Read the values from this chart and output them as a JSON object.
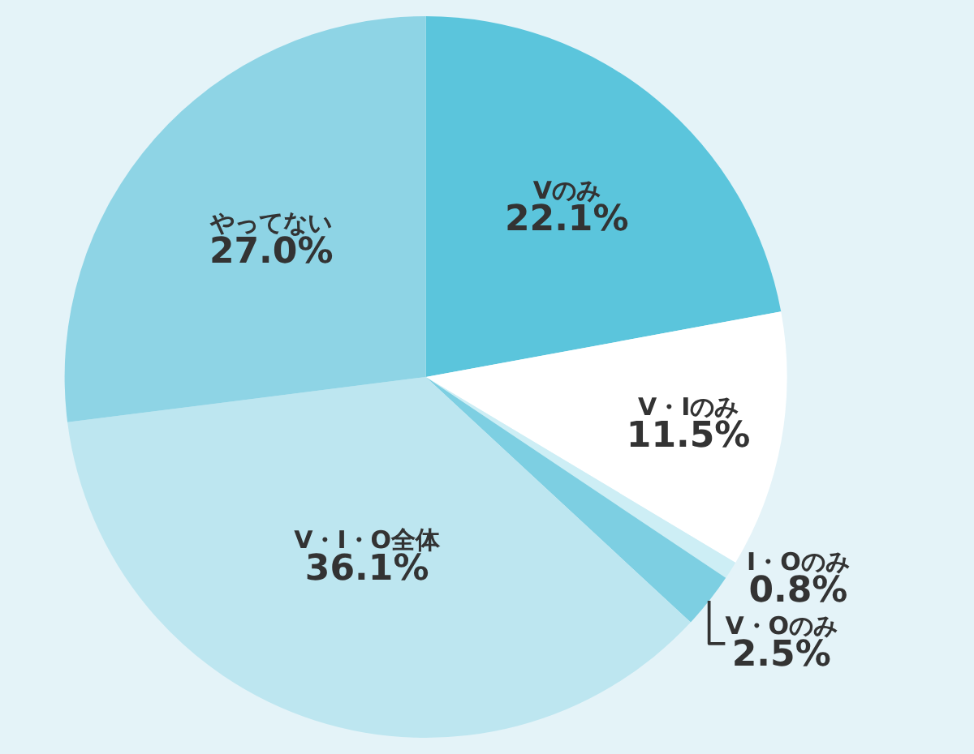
{
  "chart_data": {
    "type": "pie",
    "categories": [
      "Vのみ",
      "V・Iのみ",
      "I・Oのみ",
      "V・Oのみ",
      "V・I・O全体",
      "やってない"
    ],
    "values": [
      22.1,
      11.5,
      0.8,
      2.5,
      36.1,
      27.0
    ],
    "value_labels": [
      "22.1%",
      "11.5%",
      "0.8%",
      "2.5%",
      "36.1%",
      "27.0%"
    ],
    "colors": [
      "#5bc5dc",
      "#ffffff",
      "#cdeef5",
      "#7dcfe2",
      "#bde6f0",
      "#8ed4e5"
    ],
    "legend": false
  }
}
